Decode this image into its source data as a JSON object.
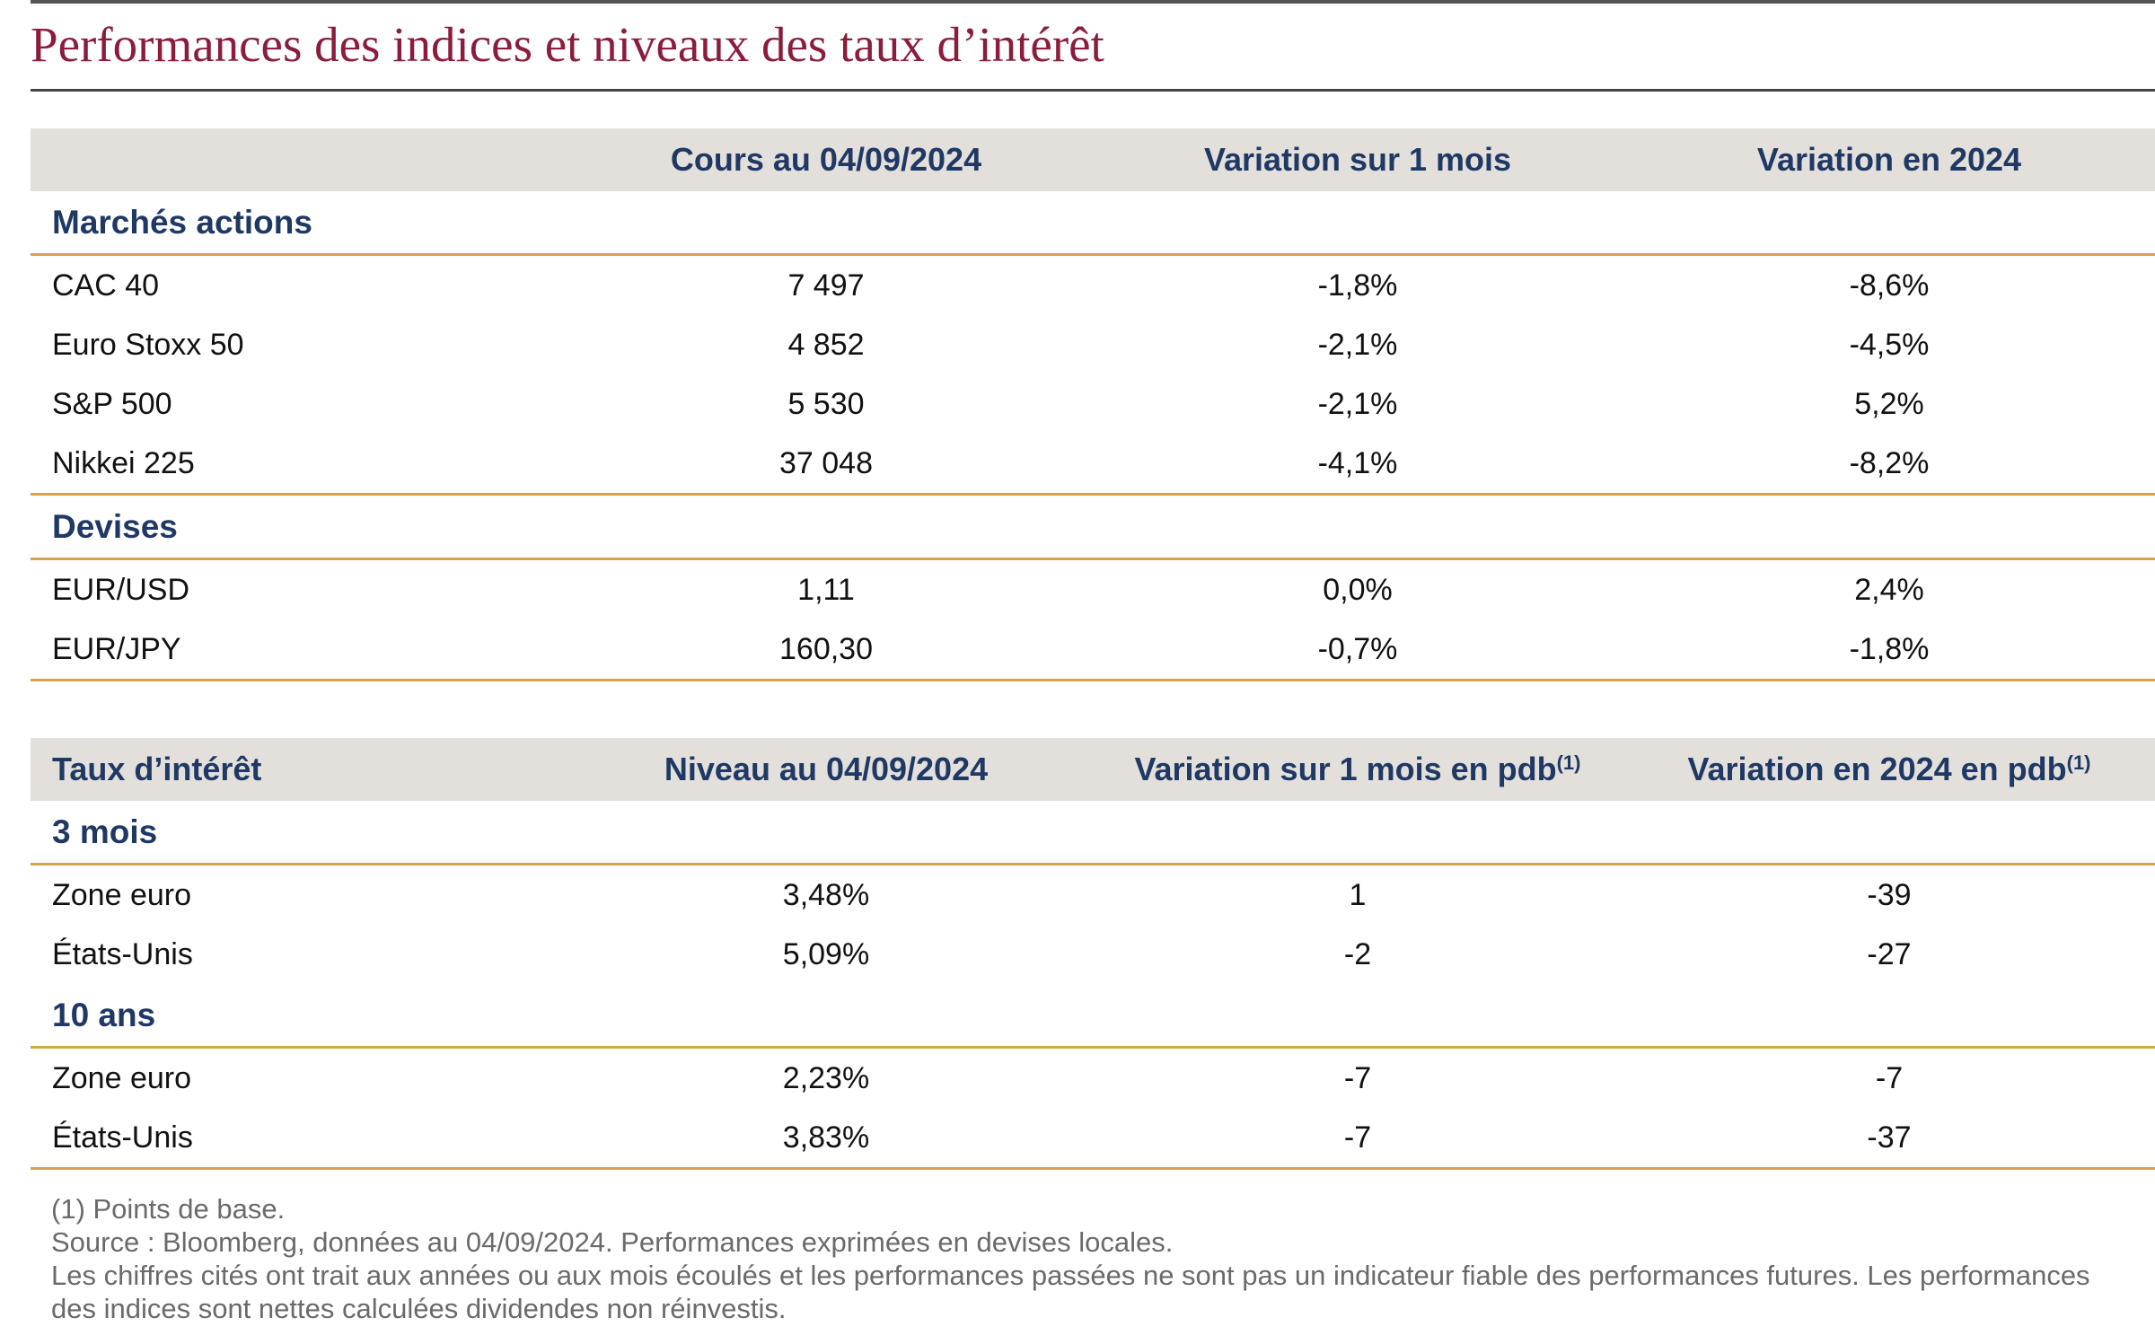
{
  "title": "Performances des indices et niveaux des taux d’intérêt",
  "markets_table": {
    "headers": [
      "",
      "Cours au 04/09/2024",
      "Variation sur 1 mois",
      "Variation en 2024"
    ],
    "sections": [
      {
        "name": "Marchés actions",
        "rows": [
          [
            "CAC 40",
            "7 497",
            "-1,8%",
            "-8,6%"
          ],
          [
            "Euro Stoxx 50",
            "4 852",
            "-2,1%",
            "-4,5%"
          ],
          [
            "S&P 500",
            "5 530",
            "-2,1%",
            "5,2%"
          ],
          [
            "Nikkei 225",
            "37 048",
            "-4,1%",
            "-8,2%"
          ]
        ]
      },
      {
        "name": "Devises",
        "rows": [
          [
            "EUR/USD",
            "1,11",
            "0,0%",
            "2,4%"
          ],
          [
            "EUR/JPY",
            "160,30",
            "-0,7%",
            "-1,8%"
          ]
        ]
      }
    ]
  },
  "rates_table": {
    "headers": [
      "Taux d’intérêt",
      "Niveau au 04/09/2024",
      "Variation sur 1 mois en pdb",
      "Variation en 2024 en pdb"
    ],
    "header_superscript": "(1)",
    "sections": [
      {
        "name": "3 mois",
        "rows": [
          [
            "Zone euro",
            "3,48%",
            "1",
            "-39"
          ],
          [
            "États-Unis",
            "5,09%",
            "-2",
            "-27"
          ]
        ]
      },
      {
        "name": "10 ans",
        "rows": [
          [
            "Zone euro",
            "2,23%",
            "-7",
            "-7"
          ],
          [
            "États-Unis",
            "3,83%",
            "-7",
            "-37"
          ]
        ]
      }
    ]
  },
  "footnotes": [
    "(1) Points de base.",
    "Source : Bloomberg, données au 04/09/2024. Performances exprimées en devises locales.",
    "Les chiffres cités ont trait aux années ou aux mois écoulés et les performances passées ne sont pas un indicateur fiable des performances futures. Les performances des indices sont nettes calculées dividendes non réinvestis."
  ],
  "colors": {
    "title": "#8b1c3c",
    "header_text": "#1f3864",
    "header_bg": "#e3e0dc",
    "rule": "#d4a34a",
    "footnote": "#6a6a6a"
  }
}
